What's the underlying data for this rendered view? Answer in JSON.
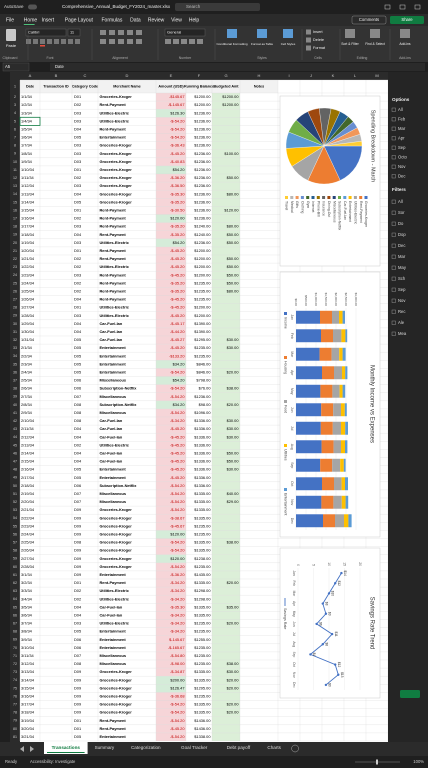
{
  "title_bar": {
    "autosave": "AutoSave",
    "file": "Comprehensive_Annual_Budget_FY2024_master.xlsx",
    "search": "Search"
  },
  "menu": [
    "File",
    "Home",
    "Insert",
    "Page Layout",
    "Formulas",
    "Data",
    "Review",
    "View",
    "Help"
  ],
  "menu_right": [
    "Comments",
    "Share"
  ],
  "ribbon": {
    "paste": "Paste",
    "font": "Calibri",
    "size": "11",
    "number_format": "General",
    "cond": "Conditional Formatting",
    "table": "Format as Table",
    "styles": "Cell Styles",
    "insert": "Insert",
    "delete": "Delete",
    "format": "Format",
    "sort": "Sort & Filter",
    "find": "Find & Select",
    "addins": "Add-ins",
    "groups": [
      "Clipboard",
      "Font",
      "Alignment",
      "Number",
      "Styles",
      "Cells",
      "Editing",
      "Add-ins"
    ]
  },
  "formula_bar": {
    "cell": "A5",
    "content": "Date"
  },
  "columns": [
    "A",
    "B",
    "C",
    "D",
    "E",
    "F",
    "G",
    "H",
    "I",
    "J",
    "K",
    "L",
    "M"
  ],
  "headers": [
    "Date",
    "Transaction ID",
    "Category Code",
    "Merchant Name",
    "Amount (USD)",
    "Running Balance",
    "Budgeted Amt",
    "Notes"
  ],
  "row_numbers": [
    1,
    2,
    3,
    4,
    5,
    6,
    7,
    8,
    9,
    10,
    11,
    12,
    13,
    14,
    15,
    16,
    17,
    18,
    19,
    20,
    21,
    22,
    23,
    24,
    25,
    26,
    27,
    28,
    29,
    30,
    31,
    32,
    33,
    34,
    35,
    36,
    37,
    38,
    39,
    40,
    41,
    42,
    43,
    44,
    45,
    46,
    47,
    48,
    49,
    50,
    51,
    52,
    53,
    54,
    55,
    56,
    57,
    58,
    59,
    60,
    61,
    62,
    63,
    64,
    65,
    66,
    67,
    68,
    69,
    70,
    71,
    72,
    73,
    74,
    75,
    76,
    77,
    78,
    79,
    80,
    81
  ],
  "rows": [
    [
      "1/1/34",
      "D01",
      "Groceries-Kroger",
      "-$145.67",
      "$1200.00",
      "$1200.00"
    ],
    [
      "1/2/34",
      "D02",
      "Rent-Payment",
      "-$-145.67",
      "$1200.00",
      "$1200.00"
    ],
    [
      "1/3/34",
      "D03",
      "Utilities-Electric",
      "$126.30",
      "$1236.00",
      null
    ],
    [
      "1/4/34",
      "D03",
      "Utilities-Electric",
      "-$-54.20",
      "$1236.00",
      null
    ],
    [
      "1/5/34",
      "D04",
      "Rent-Payment",
      "-$-54.20",
      "$1236.00",
      null
    ],
    [
      "1/6/34",
      "D05",
      "Entertainment",
      "-$-54.20",
      "$1236.00",
      null
    ],
    [
      "1/7/34",
      "D03",
      "Groceries-Kroger",
      "-$-36.43",
      "$1236.00",
      null
    ],
    [
      "1/8/34",
      "D03",
      "Groceries-Kroger",
      "-$-45.20",
      "$1236.00",
      "$100.00"
    ],
    [
      "1/9/34",
      "D03",
      "Groceries-Kroger",
      "-$-40.83",
      "$1236.00",
      null
    ],
    [
      "1/10/34",
      "D01",
      "Groceries-Kroger",
      "$54.20",
      "$1236.00",
      null
    ],
    [
      "1/11/34",
      "D02",
      "Groceries-Kroger",
      "-$-36.20",
      "$1236.00",
      "$50.00"
    ],
    [
      "1/12/34",
      "D03",
      "Groceries-Kroger",
      "-$-36.50",
      "$1236.00",
      null
    ],
    [
      "1/13/34",
      "D04",
      "Groceries-Kroger",
      "-$-35.30",
      "$1236.00",
      "$80.00"
    ],
    [
      "1/14/34",
      "D05",
      "Groceries-Kroger",
      "-$-35.20",
      "$1236.00",
      null
    ],
    [
      "1/15/34",
      "D01",
      "Rent-Payment",
      "-$-30.50",
      "$1236.00",
      "$120.00"
    ],
    [
      "1/16/34",
      "D02",
      "Rent-Payment",
      "$120.00",
      "$1236.00",
      null
    ],
    [
      "1/17/34",
      "D03",
      "Rent-Payment",
      "-$-35.20",
      "$1240.00",
      "$80.00"
    ],
    [
      "1/18/34",
      "D04",
      "Rent-Payment",
      "-$-35.20",
      "$1240.00",
      "$50.00"
    ],
    [
      "1/19/34",
      "D03",
      "Utilities-Electric",
      "$54.20",
      "$1236.00",
      "$50.00"
    ],
    [
      "1/20/34",
      "D01",
      "Rent-Payment",
      "-$-45.20",
      "$1200.00",
      null
    ],
    [
      "1/21/34",
      "D02",
      "Rent-Payment",
      "-$-45.20",
      "$1200.00",
      "$50.00"
    ],
    [
      "1/22/34",
      "D02",
      "Utilities-Electric",
      "-$-45.20",
      "$1200.00",
      "$50.00"
    ],
    [
      "1/23/34",
      "D03",
      "Rent-Payment",
      "-$-45.20",
      "$1200.00",
      "$50.00"
    ],
    [
      "1/24/34",
      "D02",
      "Rent-Payment",
      "-$-35.20",
      "$1235.00",
      "$50.00"
    ],
    [
      "1/25/34",
      "D02",
      "Rent-Payment",
      "-$-35.20",
      "$1235.00",
      "$80.00"
    ],
    [
      "1/26/34",
      "D04",
      "Rent-Payment",
      "-$-45.20",
      "$1235.00",
      null
    ],
    [
      "1/27/34",
      "D01",
      "Utilities-Electric",
      "-$-45.20",
      "$1200.00",
      null
    ],
    [
      "1/28/34",
      "D03",
      "Utilities-Electric",
      "-$-45.20",
      "$1200.00",
      null
    ],
    [
      "1/29/34",
      "D04",
      "Car-Fuel-Ian",
      "-$-45.17",
      "$1390.00",
      null
    ],
    [
      "1/30/34",
      "D04",
      "Car-Fuel-Ian",
      "-$-44.20",
      "$1390.00",
      null
    ],
    [
      "1/31/34",
      "D05",
      "Car-Fuel-Ian",
      "-$-45.27",
      "$1295.00",
      "$30.00"
    ],
    [
      "2/1/34",
      "D05",
      "Entertainment",
      "-$-45.20",
      "$1235.00",
      "$30.00"
    ],
    [
      "2/2/34",
      "D05",
      "Entertainment",
      "-$133.20",
      "$1235.00",
      null
    ],
    [
      "2/3/34",
      "D05",
      "Entertainment",
      "$34.20",
      "$846.00",
      null
    ],
    [
      "2/4/34",
      "D05",
      "Entertainment",
      "-$-54.20",
      "$846.00",
      "$20.00"
    ],
    [
      "2/5/34",
      "D06",
      "Miscellaneous",
      "$54.20",
      "$798.00",
      null
    ],
    [
      "2/6/34",
      "D06",
      "Subscription-Netflix",
      "-$-54.20",
      "$76.00",
      "$38.00"
    ],
    [
      "2/7/34",
      "D07",
      "Miscellaneous",
      "-$-54.20",
      "$1236.00",
      null
    ],
    [
      "2/8/34",
      "D08",
      "Subscription-Netflix",
      "$34.20",
      "$98.00",
      "$20.00"
    ],
    [
      "2/9/34",
      "D08",
      "Miscellaneous",
      "-$-54.20",
      "$1096.00",
      null
    ],
    [
      "2/10/34",
      "D08",
      "Car-Fuel-Ian",
      "-$-34.20",
      "$1336.00",
      "$30.00"
    ],
    [
      "2/11/34",
      "D04",
      "Car-Fuel-Ian",
      "-$-45.20",
      "$1336.00",
      "$30.00"
    ],
    [
      "2/12/34",
      "D04",
      "Car-Fuel-Ian",
      "-$-45.20",
      "$1336.00",
      "$30.00"
    ],
    [
      "2/13/34",
      "D02",
      "Utilities-Electric",
      "-$-45.20",
      "$1336.00",
      null
    ],
    [
      "2/14/34",
      "D04",
      "Car-Fuel-Ian",
      "-$-45.20",
      "$1336.00",
      "$50.00"
    ],
    [
      "2/15/34",
      "D04",
      "Car-Fuel-Ian",
      "-$-45.20",
      "$1336.00",
      "$50.00"
    ],
    [
      "2/16/34",
      "D05",
      "Entertainment",
      "-$-45.20",
      "$1336.00",
      "$30.00"
    ],
    [
      "2/17/34",
      "D05",
      "Entertainment",
      "-$-45.20",
      "$1336.00",
      null
    ],
    [
      "2/18/34",
      "D06",
      "Subscription-Netflix",
      "-$-54.20",
      "$1336.00",
      null
    ],
    [
      "2/19/34",
      "D07",
      "Miscellaneous",
      "-$-54.20",
      "$1335.00",
      "$40.00"
    ],
    [
      "2/20/34",
      "D07",
      "Miscellaneous",
      "-$-54.20",
      "$1335.00",
      "$29.00"
    ],
    [
      "2/21/34",
      "D09",
      "Groceries-Kroger",
      "-$-54.20",
      "$1335.00",
      null
    ],
    [
      "2/22/34",
      "D09",
      "Groceries-Kroger",
      "-$-38.67",
      "$1335.00",
      null
    ],
    [
      "2/23/34",
      "D09",
      "Groceries-Kroger",
      "-$-45.67",
      "$1235.00",
      null
    ],
    [
      "2/24/34",
      "D09",
      "Groceries-Kroger",
      "$120.00",
      "$1235.00",
      null
    ],
    [
      "2/25/34",
      "D08",
      "Groceries-Kroger",
      "-$-54.20",
      "$1335.00",
      "$38.00"
    ],
    [
      "2/26/34",
      "D09",
      "Groceries-Kroger",
      "-$-54.20",
      "$1335.00",
      null
    ],
    [
      "2/27/34",
      "D09",
      "Groceries-Kroger",
      "$120.00",
      "$1238.00",
      null
    ],
    [
      "2/28/34",
      "D09",
      "Groceries-Kroger",
      "-$-54.20",
      "$1235.00",
      null
    ],
    [
      "3/1/34",
      "D09",
      "Entertainment",
      "-$-36.20",
      "$1435.00",
      null
    ],
    [
      "3/2/34",
      "D01",
      "Rent-Payment",
      "-$-34.20",
      "$1335.00",
      "$20.00"
    ],
    [
      "3/3/34",
      "D02",
      "Utilities-Electric",
      "-$-34.20",
      "$1298.00",
      null
    ],
    [
      "3/4/34",
      "D02",
      "Utilities-Electric",
      "-$-34.20",
      "$1298.00",
      null
    ],
    [
      "3/5/34",
      "D04",
      "Car-Fuel-Ian",
      "-$-35.30",
      "$1335.00",
      "$35.00"
    ],
    [
      "3/6/34",
      "D04",
      "Car-Fuel-Ian",
      "-$-34.20",
      "$1335.00",
      null
    ],
    [
      "3/7/34",
      "D03",
      "Utilities-Electric",
      "-$-34.20",
      "$1235.00",
      "$20.00"
    ],
    [
      "3/8/34",
      "D05",
      "Entertainment",
      "-$-34.20",
      "$1235.00",
      null
    ],
    [
      "3/9/34",
      "D06",
      "Entertainment",
      "$-145.67",
      "$1255.00",
      null
    ],
    [
      "3/10/34",
      "D06",
      "Entertainment",
      "-$-165.67",
      "$1235.00",
      null
    ],
    [
      "3/11/34",
      "D07",
      "Miscellaneous",
      "-$-54.80",
      "$1235.00",
      null
    ],
    [
      "3/12/34",
      "D08",
      "Miscellaneous",
      "-$-98.00",
      "$1235.00",
      "$38.00"
    ],
    [
      "3/13/34",
      "D09",
      "Groceries-Kroger",
      "-$-34.87",
      "$1335.00",
      "$30.00"
    ],
    [
      "3/14/34",
      "D09",
      "Groceries-Kroger",
      "$200.00",
      "$1335.00",
      "$20.00"
    ],
    [
      "3/15/34",
      "D09",
      "Groceries-Kroger",
      "$126.47",
      "$1295.00",
      "$20.00"
    ],
    [
      "3/16/34",
      "D09",
      "Groceries-Kroger",
      "-$-36.68",
      "$1235.00",
      null
    ],
    [
      "3/17/34",
      "D09",
      "Groceries-Kroger",
      "-$-54.20",
      "$1335.00",
      "$20.00"
    ],
    [
      "3/18/34",
      "D09",
      "Groceries-Kroger",
      "-$-54.20",
      "$1335.00",
      "$20.00"
    ],
    [
      "3/19/34",
      "D01",
      "Rent-Payment",
      "-$-54.20",
      "$1436.00",
      null
    ],
    [
      "3/20/34",
      "D01",
      "Rent-Payment",
      "-$-45.20",
      "$1436.00",
      null
    ],
    [
      "3/21/34",
      "D05",
      "Entertainment",
      "-$-54.20",
      "$1338.00",
      null
    ]
  ],
  "chart_data": [
    {
      "type": "pie",
      "title": "Spending Breakdown - March",
      "categories": [
        "Groceries-Kroger",
        "Rent-Payment",
        "Utilities-Electric",
        "Entertainment",
        "Car-Fuel-Ian",
        "Subscription-Netflix",
        "Miscellaneous",
        "Dining-Out",
        "Insurance",
        "Phone-Bill",
        "Internet",
        "Gym",
        "Clothing",
        "Gifts",
        "Medical",
        "Travel"
      ],
      "values": [
        18,
        14,
        9,
        8,
        7,
        6,
        6,
        5,
        5,
        4,
        4,
        3,
        3,
        3,
        3,
        2
      ],
      "colors": [
        "#4472c4",
        "#ed7d31",
        "#a5a5a5",
        "#ffc000",
        "#5b9bd5",
        "#70ad47",
        "#264478",
        "#9e480e",
        "#636363",
        "#997300",
        "#255e91",
        "#43682b",
        "#698ed0",
        "#f1975a",
        "#b7b7b7",
        "#ffcd33"
      ]
    },
    {
      "type": "bar",
      "stacked": true,
      "title": "Monthly Income vs Expenses",
      "categories": [
        "Jan",
        "Feb",
        "Mar",
        "Apr",
        "May",
        "Jun",
        "Jul",
        "Aug",
        "Sep",
        "Oct",
        "Nov",
        "Dec"
      ],
      "series": [
        {
          "name": "Income",
          "color": "#4472c4",
          "values": [
            1200,
            1250,
            1180,
            1300,
            1220,
            1260,
            1240,
            1280,
            1210,
            1300,
            1270,
            1350
          ]
        },
        {
          "name": "Housing",
          "color": "#ed7d31",
          "values": [
            600,
            600,
            600,
            600,
            600,
            600,
            600,
            600,
            600,
            600,
            600,
            600
          ]
        },
        {
          "name": "Food",
          "color": "#a5a5a5",
          "values": [
            350,
            420,
            380,
            400,
            360,
            390,
            410,
            370,
            400,
            380,
            420,
            450
          ]
        },
        {
          "name": "Utilities",
          "color": "#ffc000",
          "values": [
            180,
            200,
            170,
            160,
            150,
            190,
            210,
            200,
            180,
            170,
            190,
            220
          ]
        },
        {
          "name": "Entertainment",
          "color": "#5b9bd5",
          "values": [
            120,
            90,
            150,
            110,
            130,
            100,
            140,
            120,
            90,
            150,
            130,
            160
          ]
        }
      ],
      "ylim": [
        0,
        3000
      ],
      "yticks": [
        {
          "value": 0,
          "label": "$0.00"
        },
        {
          "value": 500,
          "label": "$500.00"
        },
        {
          "value": 1000,
          "label": "$1,000.00"
        },
        {
          "value": 1500,
          "label": "$1,500.00"
        },
        {
          "value": 2000,
          "label": "$2,000.00"
        },
        {
          "value": 2500,
          "label": "$2,500.00"
        },
        {
          "value": 3000,
          "label": "$3,000.00"
        }
      ],
      "grid": true
    },
    {
      "type": "line",
      "title": "Savings Rate Trend",
      "categories": [
        "Jan",
        "Feb",
        "Mar",
        "Apr",
        "May",
        "Jun",
        "Jul",
        "Aug",
        "Sep",
        "Oct",
        "Nov",
        "Dec"
      ],
      "series": [
        {
          "name": "Savings Rate",
          "color": "#4472c4",
          "values": [
            14,
            12,
            10,
            8,
            9,
            6,
            11,
            8,
            4,
            12,
            13,
            9
          ],
          "value_labels": [
            "$14",
            "$12",
            "$10",
            "$8",
            "$9",
            "$6",
            "$11",
            "$8",
            "$4",
            "$12",
            "$13",
            "$9"
          ]
        }
      ],
      "ylim": [
        0,
        20
      ],
      "yticks": [
        0,
        5,
        10,
        15,
        20
      ],
      "grid": true
    }
  ],
  "side_panel": {
    "options_title": "Options",
    "options": [
      "All",
      "Feb",
      "Mar",
      "Apr",
      "Sep",
      "Octo",
      "Nov",
      "Dec"
    ],
    "filters_title": "Filters",
    "filters": [
      "All",
      "Sor",
      "Do",
      "Dop",
      "Dec",
      "Mar",
      "May",
      "Sch",
      "Sep",
      "Nov",
      "Rec",
      "Ale",
      "Mea"
    ]
  },
  "sheet_tabs": [
    "Transactions",
    "Summary",
    "Categorization",
    "Goal Tracker",
    "Debt payoff",
    "Charts"
  ],
  "status": {
    "ready": "Ready",
    "accessibility": "Accessibility: Investigate",
    "zoom": "100%"
  }
}
